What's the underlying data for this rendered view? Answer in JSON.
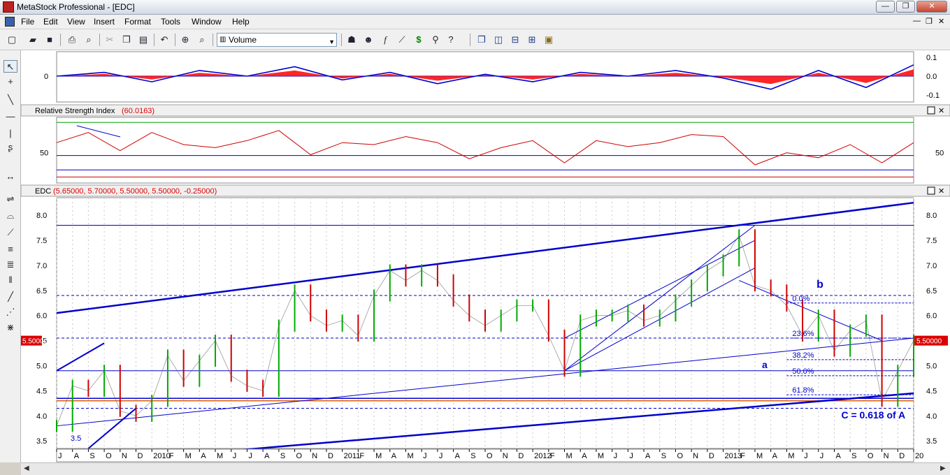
{
  "window": {
    "title": "MetaStock Professional - [EDC]",
    "controls": {
      "minimize": "—",
      "restore": "❐",
      "close": "✕"
    }
  },
  "menu": [
    "File",
    "Edit",
    "View",
    "Insert",
    "Format",
    "Tools",
    "Window",
    "Help"
  ],
  "toolbar": {
    "security_select_value": "Volume"
  },
  "x_axis_labels": [
    "J",
    "A",
    "S",
    "O",
    "N",
    "D",
    "2010",
    "F",
    "M",
    "A",
    "M",
    "J",
    "J",
    "A",
    "S",
    "O",
    "N",
    "D",
    "2011",
    "F",
    "M",
    "A",
    "M",
    "J",
    "J",
    "A",
    "S",
    "O",
    "N",
    "D",
    "2012",
    "F",
    "M",
    "A",
    "M",
    "J",
    "J",
    "A",
    "S",
    "O",
    "N",
    "D",
    "2013",
    "F",
    "M",
    "A",
    "M",
    "J",
    "J",
    "A",
    "S",
    "O",
    "N",
    "D",
    "20"
  ],
  "panels": {
    "oscillator": {
      "ticks_right": [
        "0.1",
        "0.0",
        "-0.1"
      ],
      "ticks_left": [
        "0"
      ],
      "ylim": [
        -0.13,
        0.13
      ]
    },
    "rsi": {
      "title_label": "Relative Strength Index",
      "title_value": "(60.0163)",
      "ticks_left": [
        "50"
      ],
      "ticks_right": [
        "50"
      ],
      "ylim": [
        0,
        100
      ]
    },
    "price": {
      "title_label": "EDC",
      "title_value": "(5.65000, 5.70000, 5.50000, 5.50000, -0.25000)",
      "last_price_label": "5.50000",
      "ticks": [
        "8.0",
        "7.5",
        "7.0",
        "6.5",
        "6.0",
        "5.5",
        "5.0",
        "4.5",
        "4.0",
        "3.5"
      ],
      "ylim": [
        3.35,
        8.35
      ]
    }
  },
  "chart_data": {
    "type": "line",
    "title": "EDC",
    "x_range": [
      "2009-07",
      "2014-01"
    ],
    "series": [
      {
        "name": "EDC",
        "panel": "price",
        "x": [
          "2009-07",
          "2009-08",
          "2009-09",
          "2009-10",
          "2009-11",
          "2009-12",
          "2010-01",
          "2010-02",
          "2010-03",
          "2010-04",
          "2010-05",
          "2010-06",
          "2010-07",
          "2010-08",
          "2010-09",
          "2010-10",
          "2010-11",
          "2010-12",
          "2011-01",
          "2011-02",
          "2011-03",
          "2011-04",
          "2011-05",
          "2011-06",
          "2011-07",
          "2011-08",
          "2011-09",
          "2011-10",
          "2011-11",
          "2011-12",
          "2012-01",
          "2012-02",
          "2012-03",
          "2012-04",
          "2012-05",
          "2012-06",
          "2012-07",
          "2012-08",
          "2012-09",
          "2012-10",
          "2012-11",
          "2012-12",
          "2013-01",
          "2013-02",
          "2013-03",
          "2013-04",
          "2013-05",
          "2013-06",
          "2013-07",
          "2013-08",
          "2013-09",
          "2013-10",
          "2013-11",
          "2013-12",
          "2014-01"
        ],
        "values": [
          3.8,
          4.6,
          4.5,
          4.9,
          4.1,
          4.0,
          4.3,
          5.2,
          4.7,
          5.1,
          5.5,
          4.8,
          4.6,
          4.5,
          5.8,
          6.5,
          6.0,
          5.8,
          5.9,
          5.6,
          6.4,
          6.9,
          6.7,
          6.9,
          6.7,
          6.3,
          6.0,
          5.8,
          6.0,
          6.2,
          6.2,
          5.6,
          4.9,
          5.9,
          6.0,
          6.0,
          6.1,
          5.9,
          6.0,
          6.3,
          6.6,
          6.9,
          7.1,
          7.6,
          6.6,
          6.5,
          6.2,
          5.6,
          6.0,
          5.3,
          5.7,
          5.9,
          4.3,
          4.9,
          5.5
        ]
      },
      {
        "name": "Relative Strength Index",
        "panel": "rsi",
        "x": [
          "2009-07",
          "2009-09",
          "2009-11",
          "2010-01",
          "2010-03",
          "2010-05",
          "2010-07",
          "2010-09",
          "2010-11",
          "2011-01",
          "2011-03",
          "2011-05",
          "2011-07",
          "2011-09",
          "2011-11",
          "2012-01",
          "2012-03",
          "2012-05",
          "2012-07",
          "2012-09",
          "2012-11",
          "2013-01",
          "2013-03",
          "2013-05",
          "2013-07",
          "2013-09",
          "2013-11",
          "2014-01"
        ],
        "values": [
          60,
          70,
          52,
          70,
          58,
          55,
          62,
          72,
          48,
          60,
          58,
          66,
          60,
          44,
          55,
          62,
          40,
          62,
          56,
          60,
          68,
          66,
          38,
          50,
          45,
          58,
          40,
          60
        ]
      },
      {
        "name": "Oscillator",
        "panel": "oscillator",
        "x": [
          "2009-07",
          "2009-10",
          "2010-01",
          "2010-04",
          "2010-07",
          "2010-10",
          "2011-01",
          "2011-04",
          "2011-07",
          "2011-10",
          "2012-01",
          "2012-04",
          "2012-07",
          "2012-10",
          "2013-01",
          "2013-04",
          "2013-07",
          "2013-10",
          "2014-01"
        ],
        "values": [
          0.0,
          0.02,
          -0.03,
          0.03,
          0.0,
          0.05,
          -0.02,
          0.02,
          -0.04,
          0.01,
          -0.03,
          0.02,
          0.0,
          0.03,
          -0.01,
          -0.07,
          0.03,
          -0.06,
          0.06
        ]
      }
    ],
    "annotations": [
      "b",
      "a",
      "C = 0.618 of A",
      "3.5",
      "0.0%",
      "23.6%",
      "38.2%",
      "50.0%",
      "61.8%"
    ],
    "fib_levels": [
      {
        "label": "0.0%",
        "value": 6.25
      },
      {
        "label": "23.6%",
        "value": 5.55
      },
      {
        "label": "38.2%",
        "value": 5.12
      },
      {
        "label": "50.0%",
        "value": 4.8
      },
      {
        "label": "61.8%",
        "value": 4.42
      }
    ],
    "horizontal_lines": [
      7.8,
      6.4,
      5.55,
      4.9,
      4.35,
      4.3,
      4.15
    ],
    "colors": {
      "price_up": "#00aa00",
      "price_down": "#d00000",
      "trendline": "#0000cc",
      "rsi": "#d00000",
      "overbought": "#00a000",
      "oversold": "#d00000",
      "histogram": "#ff0000"
    }
  }
}
